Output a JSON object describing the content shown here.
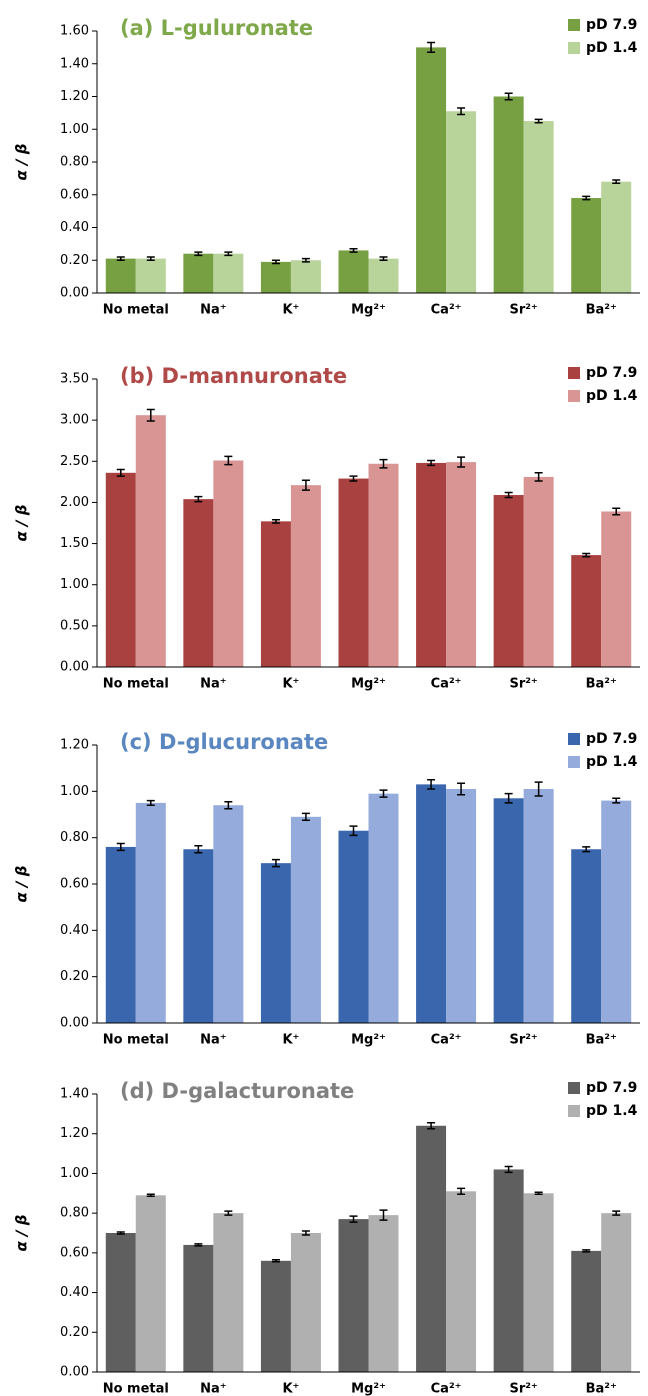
{
  "chart_data": [
    {
      "type": "bar",
      "title": "(a) L-guluronate",
      "title_color": "#7ea84a",
      "y_label": "α / β",
      "categories": [
        "No metal",
        "Na⁺",
        "K⁺",
        "Mg²⁺",
        "Ca²⁺",
        "Sr²⁺",
        "Ba²⁺"
      ],
      "series": [
        {
          "name": "pD 7.9",
          "color": "#77a043",
          "values": [
            0.21,
            0.24,
            0.19,
            0.26,
            1.5,
            1.2,
            0.58
          ],
          "errors": [
            0.01,
            0.01,
            0.01,
            0.01,
            0.03,
            0.02,
            0.01
          ]
        },
        {
          "name": "pD 1.4",
          "color": "#b8d49a",
          "values": [
            0.21,
            0.24,
            0.2,
            0.21,
            1.11,
            1.05,
            0.68
          ],
          "errors": [
            0.01,
            0.01,
            0.01,
            0.01,
            0.02,
            0.01,
            0.01
          ]
        }
      ],
      "ylim": [
        0,
        1.6
      ],
      "yticks": [
        {
          "value": 0,
          "label": "0.00"
        },
        {
          "value": 0.2,
          "label": "0.20"
        },
        {
          "value": 0.4,
          "label": "0.40"
        },
        {
          "value": 0.6,
          "label": "0.60"
        },
        {
          "value": 0.8,
          "label": "0.80"
        },
        {
          "value": 1.0,
          "label": "1.00"
        },
        {
          "value": 1.2,
          "label": "1.20"
        },
        {
          "value": 1.4,
          "label": "1.40"
        },
        {
          "value": 1.6,
          "label": "1.60"
        }
      ],
      "legend": "top-right",
      "grid": false
    },
    {
      "type": "bar",
      "title": "(b) D-mannuronate",
      "title_color": "#b04a48",
      "y_label": "α / β",
      "categories": [
        "No metal",
        "Na⁺",
        "K⁺",
        "Mg²⁺",
        "Ca²⁺",
        "Sr²⁺",
        "Ba²⁺"
      ],
      "series": [
        {
          "name": "pD 7.9",
          "color": "#a8413f",
          "values": [
            2.36,
            2.04,
            1.77,
            2.29,
            2.48,
            2.09,
            1.36
          ],
          "errors": [
            0.04,
            0.03,
            0.02,
            0.03,
            0.03,
            0.03,
            0.02
          ]
        },
        {
          "name": "pD 1.4",
          "color": "#d99594",
          "values": [
            3.06,
            2.51,
            2.21,
            2.47,
            2.49,
            2.31,
            1.89
          ],
          "errors": [
            0.07,
            0.05,
            0.06,
            0.05,
            0.06,
            0.05,
            0.04
          ]
        }
      ],
      "ylim": [
        0,
        3.5
      ],
      "yticks": [
        {
          "value": 0,
          "label": "0.00"
        },
        {
          "value": 0.5,
          "label": "0.50"
        },
        {
          "value": 1.0,
          "label": "1.00"
        },
        {
          "value": 1.5,
          "label": "1.50"
        },
        {
          "value": 2.0,
          "label": "2.00"
        },
        {
          "value": 2.5,
          "label": "2.50"
        },
        {
          "value": 3.0,
          "label": "3.00"
        },
        {
          "value": 3.5,
          "label": "3.50"
        }
      ],
      "legend": "top-right",
      "grid": false
    },
    {
      "type": "bar",
      "title": "(c) D-glucuronate",
      "title_color": "#5a87c0",
      "y_label": "α / β",
      "categories": [
        "No metal",
        "Na⁺",
        "K⁺",
        "Mg²⁺",
        "Ca²⁺",
        "Sr²⁺",
        "Ba²⁺"
      ],
      "series": [
        {
          "name": "pD 7.9",
          "color": "#3a66ad",
          "values": [
            0.76,
            0.75,
            0.69,
            0.83,
            1.03,
            0.97,
            0.75
          ],
          "errors": [
            0.015,
            0.015,
            0.015,
            0.02,
            0.02,
            0.02,
            0.01
          ]
        },
        {
          "name": "pD 1.4",
          "color": "#94abdc",
          "values": [
            0.95,
            0.94,
            0.89,
            0.99,
            1.01,
            1.01,
            0.96
          ],
          "errors": [
            0.01,
            0.015,
            0.015,
            0.015,
            0.025,
            0.03,
            0.01
          ]
        }
      ],
      "ylim": [
        0,
        1.2
      ],
      "yticks": [
        {
          "value": 0,
          "label": "0.00"
        },
        {
          "value": 0.2,
          "label": "0.20"
        },
        {
          "value": 0.4,
          "label": "0.40"
        },
        {
          "value": 0.6,
          "label": "0.60"
        },
        {
          "value": 0.8,
          "label": "0.80"
        },
        {
          "value": 1.0,
          "label": "1.00"
        },
        {
          "value": 1.2,
          "label": "1.20"
        }
      ],
      "legend": "top-right",
      "grid": false
    },
    {
      "type": "bar",
      "title": "(d) D-galacturonate",
      "title_color": "#808080",
      "y_label": "α / β",
      "categories": [
        "No metal",
        "Na⁺",
        "K⁺",
        "Mg²⁺",
        "Ca²⁺",
        "Sr²⁺",
        "Ba²⁺"
      ],
      "series": [
        {
          "name": "pD 7.9",
          "color": "#5f5f5f",
          "values": [
            0.7,
            0.64,
            0.56,
            0.77,
            1.24,
            1.02,
            0.61
          ],
          "errors": [
            0.005,
            0.005,
            0.005,
            0.015,
            0.015,
            0.015,
            0.005
          ]
        },
        {
          "name": "pD 1.4",
          "color": "#b0b0b0",
          "values": [
            0.89,
            0.8,
            0.7,
            0.79,
            0.91,
            0.9,
            0.8
          ],
          "errors": [
            0.005,
            0.01,
            0.01,
            0.025,
            0.015,
            0.005,
            0.01
          ]
        }
      ],
      "ylim": [
        0,
        1.4
      ],
      "yticks": [
        {
          "value": 0,
          "label": "0.00"
        },
        {
          "value": 0.2,
          "label": "0.20"
        },
        {
          "value": 0.4,
          "label": "0.40"
        },
        {
          "value": 0.6,
          "label": "0.60"
        },
        {
          "value": 0.8,
          "label": "0.80"
        },
        {
          "value": 1.0,
          "label": "1.00"
        },
        {
          "value": 1.2,
          "label": "1.20"
        },
        {
          "value": 1.4,
          "label": "1.40"
        }
      ],
      "legend": "top-right",
      "grid": false
    }
  ]
}
